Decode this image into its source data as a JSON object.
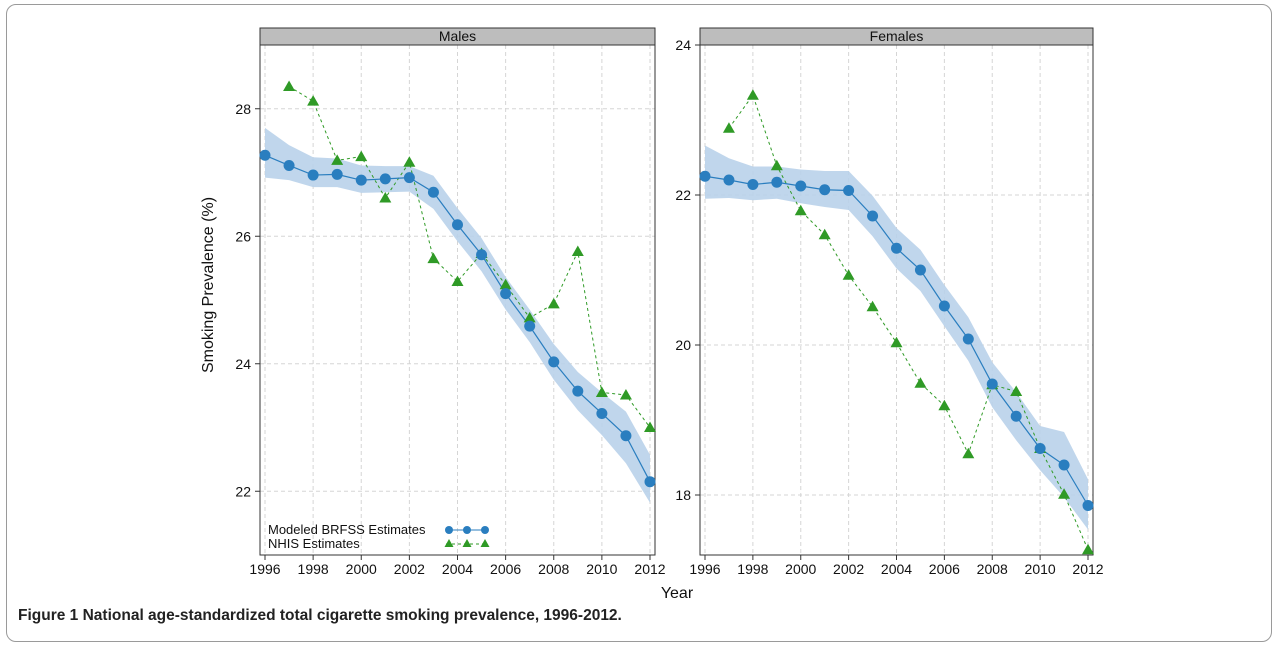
{
  "figure": {
    "caption_label": "Figure 1",
    "caption_text": "National age-standardized total cigarette smoking prevalence, 1996-2012."
  },
  "colors": {
    "brfss": "#2a7ebf",
    "band": "#b9d2ea",
    "nhis": "#2f9a26",
    "strip": "#bdbdbd",
    "grid": "#d5d5d5"
  },
  "chart_data": [
    {
      "type": "line",
      "title": "Males",
      "xlabel": "Year",
      "ylabel": "Smoking Prevalence (%)",
      "xlim": [
        1996,
        2012
      ],
      "ylim": [
        21.0,
        29.0
      ],
      "xticks": [
        1996,
        1998,
        2000,
        2002,
        2004,
        2006,
        2008,
        2010,
        2012
      ],
      "yticks": [
        22,
        24,
        26,
        28
      ],
      "grid": true,
      "legend": {
        "position": "bottom-left",
        "entries": [
          "Modeled BRFSS Estimates",
          "NHIS Estimates"
        ]
      },
      "series": [
        {
          "name": "Modeled BRFSS Estimates",
          "marker": "circle",
          "line": "solid",
          "x": [
            1996,
            1997,
            1998,
            1999,
            2000,
            2001,
            2002,
            2003,
            2004,
            2005,
            2006,
            2007,
            2008,
            2009,
            2010,
            2011,
            2012
          ],
          "y": [
            27.27,
            27.11,
            26.96,
            26.97,
            26.88,
            26.9,
            26.92,
            26.69,
            26.18,
            25.71,
            25.1,
            24.59,
            24.03,
            23.57,
            23.22,
            22.87,
            22.15
          ],
          "lower": [
            26.92,
            26.88,
            26.77,
            26.77,
            26.68,
            26.69,
            26.7,
            26.43,
            25.92,
            25.45,
            24.85,
            24.34,
            23.75,
            23.27,
            22.88,
            22.44,
            21.82
          ],
          "upper": [
            27.7,
            27.43,
            27.24,
            27.22,
            27.11,
            27.1,
            27.1,
            26.95,
            26.44,
            25.97,
            25.36,
            24.85,
            24.31,
            23.87,
            23.55,
            23.25,
            22.57
          ]
        },
        {
          "name": "NHIS Estimates",
          "marker": "triangle",
          "line": "dashed",
          "x": [
            1997,
            1998,
            1999,
            2000,
            2001,
            2002,
            2003,
            2004,
            2005,
            2006,
            2007,
            2008,
            2009,
            2010,
            2011,
            2012
          ],
          "y": [
            28.35,
            28.12,
            27.19,
            27.25,
            26.6,
            27.16,
            25.65,
            25.29,
            25.73,
            25.24,
            24.72,
            24.94,
            25.76,
            23.55,
            23.51,
            23.0
          ]
        }
      ]
    },
    {
      "type": "line",
      "title": "Females",
      "xlabel": "Year",
      "ylabel": "",
      "xlim": [
        1996,
        2012
      ],
      "ylim": [
        17.2,
        24.0
      ],
      "xticks": [
        1996,
        1998,
        2000,
        2002,
        2004,
        2006,
        2008,
        2010,
        2012
      ],
      "yticks": [
        18,
        20,
        22,
        24
      ],
      "grid": true,
      "series": [
        {
          "name": "Modeled BRFSS Estimates",
          "marker": "circle",
          "line": "solid",
          "x": [
            1996,
            1997,
            1998,
            1999,
            2000,
            2001,
            2002,
            2003,
            2004,
            2005,
            2006,
            2007,
            2008,
            2009,
            2010,
            2011,
            2012
          ],
          "y": [
            22.25,
            22.2,
            22.14,
            22.17,
            22.12,
            22.07,
            22.06,
            21.72,
            21.29,
            21.0,
            20.52,
            20.08,
            19.48,
            19.05,
            18.62,
            18.4,
            17.86
          ],
          "lower": [
            21.95,
            21.96,
            21.93,
            21.95,
            21.89,
            21.84,
            21.8,
            21.45,
            21.02,
            20.72,
            20.25,
            19.79,
            19.17,
            18.73,
            18.33,
            17.97,
            17.54
          ],
          "upper": [
            22.66,
            22.49,
            22.38,
            22.38,
            22.34,
            22.32,
            22.32,
            21.99,
            21.56,
            21.27,
            20.8,
            20.37,
            19.77,
            19.37,
            18.92,
            18.84,
            18.21
          ]
        },
        {
          "name": "NHIS Estimates",
          "marker": "triangle",
          "line": "dashed",
          "x": [
            1997,
            1998,
            1999,
            2000,
            2001,
            2002,
            2003,
            2004,
            2005,
            2006,
            2007,
            2008,
            2009,
            2010,
            2011,
            2012
          ],
          "y": [
            22.89,
            23.33,
            22.39,
            21.79,
            21.47,
            20.93,
            20.51,
            20.03,
            19.49,
            19.19,
            18.55,
            19.47,
            19.38,
            18.62,
            18.01,
            17.27
          ]
        }
      ]
    }
  ]
}
